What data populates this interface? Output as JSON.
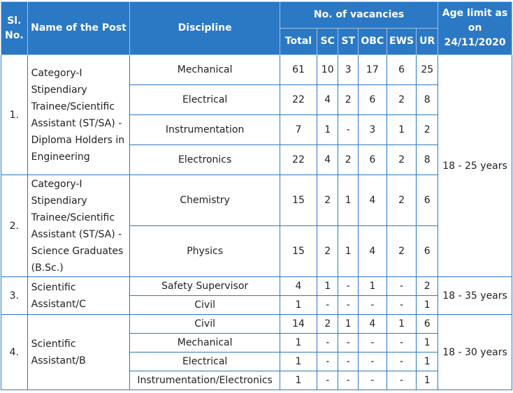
{
  "headers": {
    "sl_no": "Sl. No.",
    "post": "Name of the Post",
    "discipline": "Discipline",
    "vacancies": "No. of vacancies",
    "age": "Age limit as on 24/11/2020",
    "total": "Total",
    "sc": "SC",
    "st": "ST",
    "obc": "OBC",
    "ews": "EWS",
    "ur": "UR"
  },
  "groups": [
    {
      "sl": "1.",
      "post": "Category-I Stipendiary Trainee/Scientific Assistant (ST/SA) - Diploma Holders in Engineering",
      "rows": [
        {
          "discipline": "Mechanical",
          "total": "61",
          "sc": "10",
          "st": "3",
          "obc": "17",
          "ews": "6",
          "ur": "25"
        },
        {
          "discipline": "Electrical",
          "total": "22",
          "sc": "4",
          "st": "2",
          "obc": "6",
          "ews": "2",
          "ur": "8"
        },
        {
          "discipline": "Instrumentation",
          "total": "7",
          "sc": "1",
          "st": "-",
          "obc": "3",
          "ews": "1",
          "ur": "2"
        },
        {
          "discipline": "Electronics",
          "total": "22",
          "sc": "4",
          "st": "2",
          "obc": "6",
          "ews": "2",
          "ur": "8"
        }
      ]
    },
    {
      "sl": "2.",
      "post": "Category-I Stipendiary Trainee/Scientific Assistant (ST/SA) - Science Graduates (B.Sc.)",
      "rows": [
        {
          "discipline": "Chemistry",
          "total": "15",
          "sc": "2",
          "st": "1",
          "obc": "4",
          "ews": "2",
          "ur": "6"
        },
        {
          "discipline": "Physics",
          "total": "15",
          "sc": "2",
          "st": "1",
          "obc": "4",
          "ews": "2",
          "ur": "6"
        }
      ]
    },
    {
      "sl": "3.",
      "post": "Scientific Assistant/C",
      "rows": [
        {
          "discipline": "Safety Supervisor",
          "total": "4",
          "sc": "1",
          "st": "-",
          "obc": "1",
          "ews": "-",
          "ur": "2"
        },
        {
          "discipline": "Civil",
          "total": "1",
          "sc": "-",
          "st": "-",
          "obc": "-",
          "ews": "-",
          "ur": "1"
        }
      ]
    },
    {
      "sl": "4.",
      "post": "Scientific Assistant/B",
      "rows": [
        {
          "discipline": "Civil",
          "total": "14",
          "sc": "2",
          "st": "1",
          "obc": "4",
          "ews": "1",
          "ur": "6"
        },
        {
          "discipline": "Mechanical",
          "total": "1",
          "sc": "-",
          "st": "-",
          "obc": "-",
          "ews": "-",
          "ur": "1"
        },
        {
          "discipline": "Electrical",
          "total": "1",
          "sc": "-",
          "st": "-",
          "obc": "-",
          "ews": "-",
          "ur": "1"
        },
        {
          "discipline": "Instrumentation/Electronics",
          "total": "1",
          "sc": "-",
          "st": "-",
          "obc": "-",
          "ews": "-",
          "ur": "1"
        }
      ]
    }
  ],
  "age_limits": [
    "18 - 25 years",
    "18 - 35 years",
    "18 - 30 years"
  ]
}
